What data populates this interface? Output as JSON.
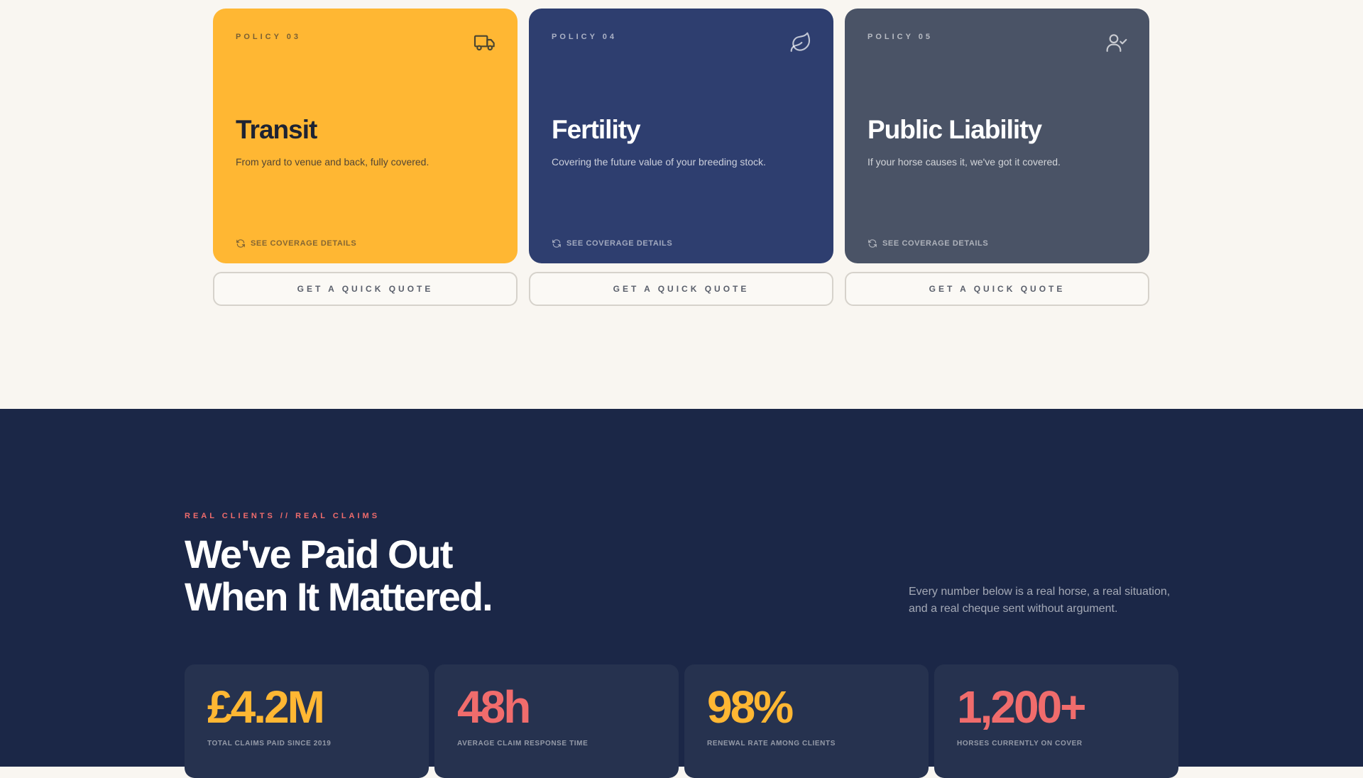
{
  "colors": {
    "yellow": "#ffb733",
    "navy": "#2e3e6f",
    "slate": "#4a5366",
    "coral": "#f06c6c",
    "dark_bg": "#1b2747",
    "cream_bg": "#f9f6f1"
  },
  "policies": [
    {
      "label": "POLICY 03",
      "icon": "truck-icon",
      "title": "Transit",
      "description": "From yard to venue and back, fully covered.",
      "details_label": "SEE COVERAGE DETAILS",
      "quote_label": "GET A QUICK QUOTE"
    },
    {
      "label": "POLICY 04",
      "icon": "leaf-icon",
      "title": "Fertility",
      "description": "Covering the future value of your breeding stock.",
      "details_label": "SEE COVERAGE DETAILS",
      "quote_label": "GET A QUICK QUOTE"
    },
    {
      "label": "POLICY 05",
      "icon": "user-check-icon",
      "title": "Public Liability",
      "description": "If your horse causes it, we've got it covered.",
      "details_label": "SEE COVERAGE DETAILS",
      "quote_label": "GET A QUICK QUOTE"
    }
  ],
  "claims": {
    "eyebrow": "REAL CLIENTS // REAL CLAIMS",
    "headline_line1": "We've Paid Out",
    "headline_line2": "When It Mattered.",
    "intro_line1": "Every number below is a real horse, a real situation,",
    "intro_line2": "and a real cheque sent without argument.",
    "stats": [
      {
        "value": "£4.2M",
        "label": "TOTAL CLAIMS PAID SINCE 2019",
        "color": "#ffb733"
      },
      {
        "value": "48h",
        "label": "AVERAGE CLAIM RESPONSE TIME",
        "color": "#f06c6c"
      },
      {
        "value": "98%",
        "label": "RENEWAL RATE AMONG CLIENTS",
        "color": "#ffb733"
      },
      {
        "value": "1,200+",
        "label": "HORSES CURRENTLY ON COVER",
        "color": "#f06c6c"
      }
    ]
  }
}
